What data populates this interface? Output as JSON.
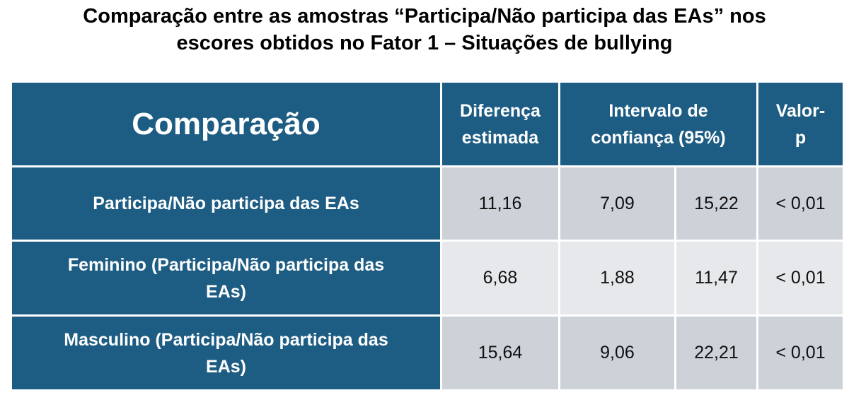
{
  "title": {
    "line1": "Comparação entre as amostras “Participa/Não participa das EAs” nos",
    "line2": "escores obtidos no Fator 1 – Situações de bullying"
  },
  "table": {
    "headers": {
      "comparison": "Comparação",
      "difference_l1": "Diferença",
      "difference_l2": "estimada",
      "ci_l1": "Intervalo de",
      "ci_l2": "confiança (95%)",
      "pvalue_l1": "Valor-",
      "pvalue_l2": "p"
    },
    "rows": [
      {
        "label_l1": "Participa/Não participa das EAs",
        "label_l2": "",
        "difference": "11,16",
        "ci_low": "7,09",
        "ci_high": "15,22",
        "pvalue": "< 0,01"
      },
      {
        "label_l1": "Feminino (Participa/Não participa das",
        "label_l2": "EAs)",
        "difference": "6,68",
        "ci_low": "1,88",
        "ci_high": "11,47",
        "pvalue": "< 0,01"
      },
      {
        "label_l1": "Masculino (Participa/Não participa das",
        "label_l2": "EAs)",
        "difference": "15,64",
        "ci_low": "9,06",
        "ci_high": "22,21",
        "pvalue": "< 0,01"
      }
    ],
    "colors": {
      "header": "#1e5d83",
      "cell_dark": "#cdd1d8",
      "cell_light": "#e6e8ec"
    }
  }
}
